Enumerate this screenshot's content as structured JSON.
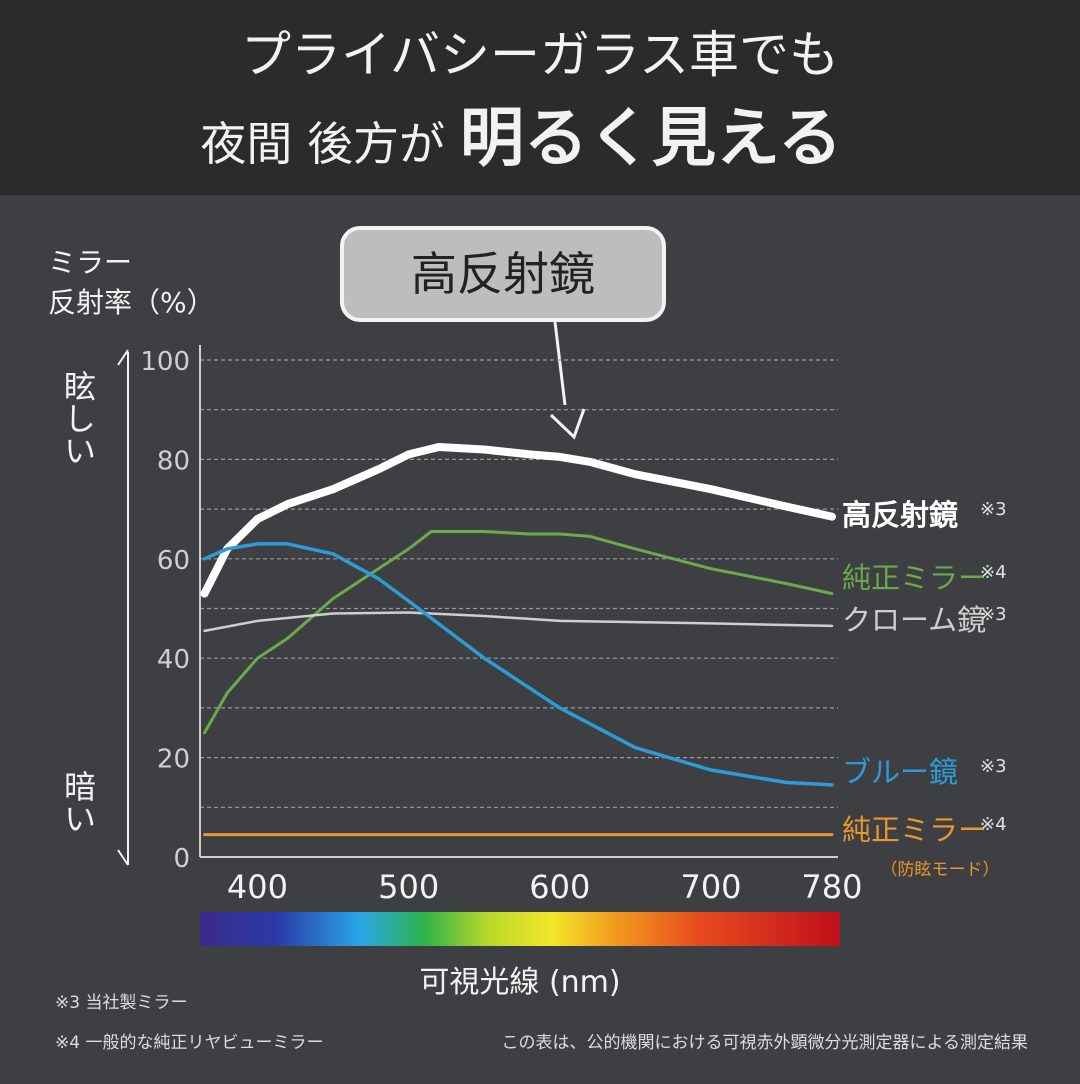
{
  "chart_data": {
    "type": "line",
    "title_line1": "プライバシーガラス車でも",
    "title_line2_small": "夜間 後方が",
    "title_line2_large": "明るく見える",
    "callout": "高反射鏡",
    "y_label_line1": "ミラー",
    "y_label_line2": "反射率（%）",
    "y_top_label": "眩しい",
    "y_bottom_label": "暗い",
    "x_label": "可視光線 (nm)",
    "xlim": [
      362,
      784
    ],
    "xticks": [
      400,
      500,
      600,
      700,
      780
    ],
    "ylim": [
      0,
      100
    ],
    "yticks": [
      0,
      20,
      40,
      60,
      80,
      100
    ],
    "minor_yticks": [
      10,
      30,
      50,
      70,
      90
    ],
    "grid": true,
    "series": [
      {
        "name": "高反射鏡",
        "note": "※3",
        "color": "#ffffff",
        "width": 8,
        "x": [
          365,
          380,
          400,
          420,
          450,
          480,
          500,
          520,
          550,
          580,
          600,
          620,
          650,
          700,
          750,
          780
        ],
        "values": [
          53,
          62,
          68,
          71,
          74,
          78,
          81,
          82.5,
          82,
          81,
          80.5,
          79.5,
          77,
          74,
          70.5,
          68.5
        ]
      },
      {
        "name": "純正ミラー",
        "note": "※4",
        "color": "#6aaa4a",
        "width": 3,
        "x": [
          365,
          380,
          400,
          420,
          450,
          480,
          500,
          515,
          550,
          580,
          600,
          620,
          650,
          700,
          750,
          780
        ],
        "values": [
          25,
          33,
          40,
          44,
          52,
          58,
          62,
          65.5,
          65.5,
          65,
          65,
          64.5,
          62,
          58,
          55,
          53
        ]
      },
      {
        "name": "クローム鏡",
        "note": "※3",
        "color": "#cfcfcf",
        "width": 2.5,
        "x": [
          365,
          400,
          450,
          500,
          550,
          600,
          700,
          780
        ],
        "values": [
          45.5,
          47.5,
          49,
          49.2,
          48.5,
          47.5,
          47,
          46.5
        ]
      },
      {
        "name": "ブルー鏡",
        "note": "※3",
        "color": "#2e9bd6",
        "width": 3.5,
        "x": [
          365,
          380,
          400,
          420,
          450,
          480,
          500,
          550,
          600,
          650,
          700,
          750,
          780
        ],
        "values": [
          60,
          62,
          63,
          63,
          61,
          56,
          51.5,
          40,
          30,
          22,
          17.5,
          15,
          14.5
        ]
      },
      {
        "name": "純正ミラー",
        "note": "※4",
        "sub": "（防眩モード）",
        "color": "#e8962e",
        "width": 3,
        "x": [
          365,
          500,
          780
        ],
        "values": [
          4.5,
          4.5,
          4.5
        ]
      }
    ],
    "footnote1": "※3 当社製ミラー",
    "footnote2": "※4 一般的な純正リヤビューミラー",
    "footnote3": "この表は、公的機関における可視赤外顕微分光測定器による測定結果"
  }
}
